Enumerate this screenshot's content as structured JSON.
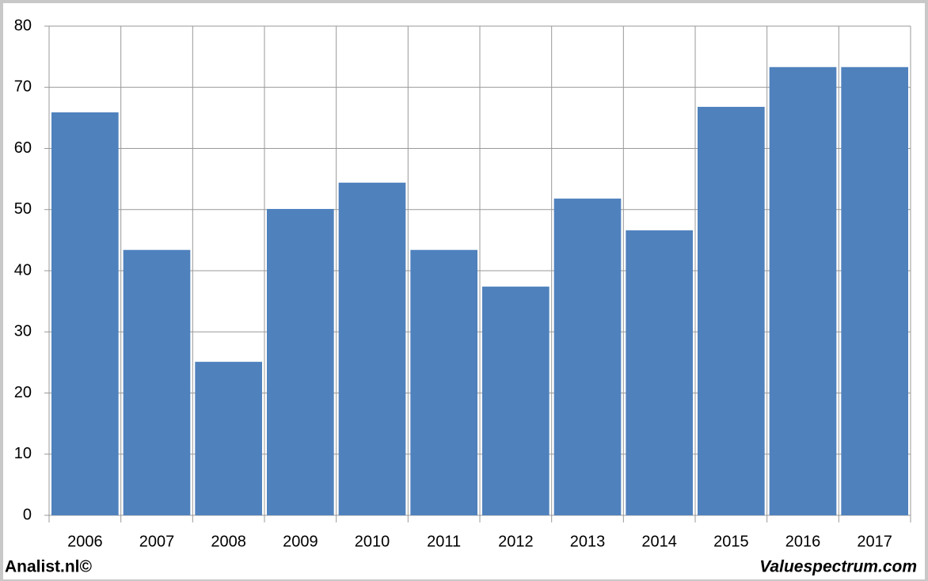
{
  "chart_data": {
    "type": "bar",
    "categories": [
      "2006",
      "2007",
      "2008",
      "2009",
      "2010",
      "2011",
      "2012",
      "2013",
      "2014",
      "2015",
      "2016",
      "2017"
    ],
    "values": [
      65.9,
      43.4,
      25.1,
      50.1,
      54.4,
      43.4,
      37.4,
      51.8,
      46.6,
      66.8,
      73.3,
      73.3
    ],
    "color": "#4f81bd",
    "ylim": [
      0,
      80
    ],
    "yticks": [
      0,
      10,
      20,
      30,
      40,
      50,
      60,
      70,
      80
    ],
    "grid": true,
    "source_left": "Analist.nl©",
    "source_right": "Valuespectrum.com"
  }
}
